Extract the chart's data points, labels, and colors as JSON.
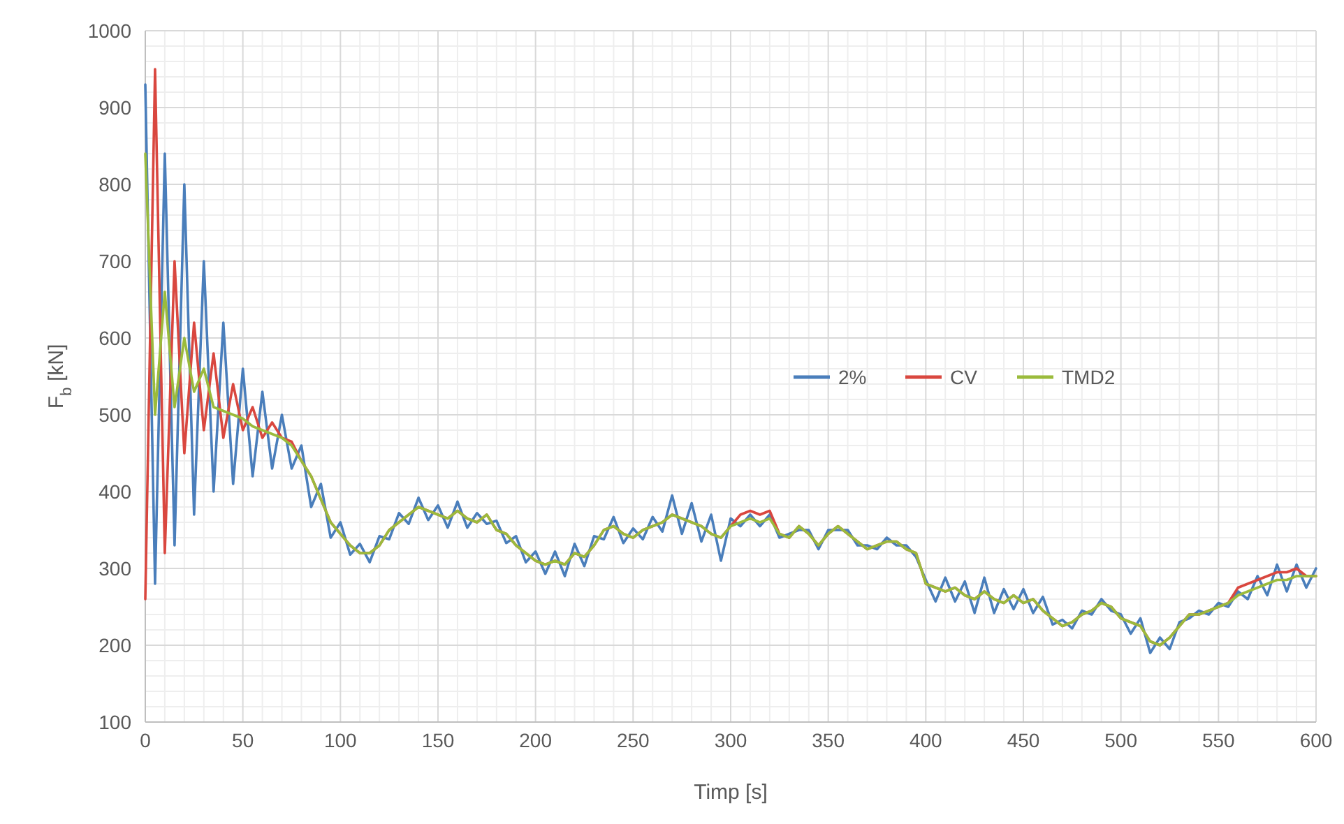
{
  "chart_data": {
    "type": "line",
    "xlabel": "Timp [s]",
    "ylabel": "F$_{b}$ [kN]",
    "x": [
      0,
      5,
      10,
      15,
      20,
      25,
      30,
      35,
      40,
      45,
      50,
      55,
      60,
      65,
      70,
      75,
      80,
      85,
      90,
      95,
      100,
      105,
      110,
      115,
      120,
      125,
      130,
      135,
      140,
      145,
      150,
      155,
      160,
      165,
      170,
      175,
      180,
      185,
      190,
      195,
      200,
      205,
      210,
      215,
      220,
      225,
      230,
      235,
      240,
      245,
      250,
      255,
      260,
      265,
      270,
      275,
      280,
      285,
      290,
      295,
      300,
      305,
      310,
      315,
      320,
      325,
      330,
      335,
      340,
      345,
      350,
      355,
      360,
      365,
      370,
      375,
      380,
      385,
      390,
      395,
      400,
      405,
      410,
      415,
      420,
      425,
      430,
      435,
      440,
      445,
      450,
      455,
      460,
      465,
      470,
      475,
      480,
      485,
      490,
      495,
      500,
      505,
      510,
      515,
      520,
      525,
      530,
      535,
      540,
      545,
      550,
      555,
      560,
      565,
      570,
      575,
      580,
      585,
      590,
      595,
      600
    ],
    "series": [
      {
        "name": "2%",
        "color": "#4a7ebb",
        "values": [
          930,
          280,
          840,
          330,
          800,
          370,
          700,
          400,
          620,
          410,
          560,
          420,
          530,
          430,
          500,
          430,
          460,
          380,
          410,
          340,
          360,
          318,
          332,
          308,
          342,
          338,
          372,
          358,
          392,
          363,
          382,
          353,
          387,
          353,
          372,
          358,
          362,
          333,
          342,
          308,
          322,
          293,
          322,
          290,
          332,
          303,
          342,
          338,
          367,
          333,
          352,
          338,
          367,
          348,
          395,
          345,
          385,
          335,
          370,
          310,
          365,
          355,
          370,
          355,
          370,
          340,
          345,
          350,
          350,
          325,
          350,
          350,
          350,
          330,
          330,
          325,
          340,
          330,
          330,
          315,
          285,
          257,
          288,
          257,
          283,
          242,
          288,
          242,
          273,
          247,
          273,
          242,
          263,
          227,
          233,
          222,
          245,
          240,
          260,
          245,
          240,
          215,
          235,
          190,
          210,
          195,
          230,
          235,
          245,
          240,
          255,
          250,
          270,
          260,
          290,
          265,
          305,
          270,
          305,
          275,
          300
        ]
      },
      {
        "name": "CV",
        "color": "#d9473f",
        "values": [
          260,
          950,
          320,
          700,
          450,
          620,
          480,
          580,
          470,
          540,
          480,
          510,
          470,
          490,
          470,
          465,
          440,
          420,
          390,
          360,
          345,
          330,
          320,
          320,
          330,
          350,
          360,
          370,
          380,
          375,
          370,
          365,
          375,
          365,
          360,
          370,
          350,
          345,
          330,
          320,
          310,
          305,
          310,
          305,
          320,
          315,
          330,
          350,
          355,
          345,
          340,
          350,
          355,
          360,
          370,
          365,
          360,
          355,
          345,
          340,
          355,
          370,
          375,
          370,
          375,
          345,
          340,
          355,
          345,
          330,
          345,
          355,
          345,
          335,
          325,
          330,
          335,
          335,
          325,
          320,
          280,
          275,
          270,
          275,
          265,
          260,
          270,
          260,
          255,
          265,
          255,
          260,
          245,
          235,
          225,
          230,
          240,
          245,
          255,
          250,
          235,
          230,
          225,
          205,
          200,
          210,
          225,
          240,
          240,
          245,
          250,
          255,
          275,
          280,
          285,
          290,
          295,
          295,
          300,
          290,
          290
        ]
      },
      {
        "name": "TMD2",
        "color": "#9bbb3c",
        "values": [
          840,
          500,
          660,
          510,
          600,
          530,
          560,
          510,
          505,
          500,
          495,
          485,
          480,
          475,
          470,
          460,
          440,
          420,
          390,
          360,
          345,
          330,
          320,
          320,
          330,
          350,
          360,
          370,
          380,
          375,
          370,
          365,
          375,
          365,
          360,
          370,
          350,
          345,
          330,
          320,
          310,
          305,
          310,
          305,
          320,
          315,
          330,
          350,
          355,
          345,
          340,
          350,
          355,
          360,
          370,
          365,
          360,
          355,
          345,
          340,
          355,
          360,
          365,
          360,
          365,
          345,
          340,
          355,
          345,
          330,
          345,
          355,
          345,
          335,
          325,
          330,
          335,
          335,
          325,
          320,
          280,
          275,
          270,
          275,
          265,
          260,
          270,
          260,
          255,
          265,
          255,
          260,
          245,
          235,
          225,
          230,
          240,
          245,
          255,
          250,
          235,
          230,
          225,
          205,
          200,
          210,
          225,
          240,
          240,
          245,
          250,
          255,
          265,
          270,
          275,
          280,
          285,
          285,
          290,
          290,
          290
        ]
      }
    ],
    "xlim": [
      0,
      600
    ],
    "xticks": [
      0,
      50,
      100,
      150,
      200,
      250,
      300,
      350,
      400,
      450,
      500,
      550,
      600
    ],
    "ylim": [
      100,
      1000
    ],
    "yticks": [
      100,
      200,
      300,
      400,
      500,
      600,
      700,
      800,
      900,
      1000
    ],
    "grid": true,
    "legend": "right",
    "marker": "none",
    "line_style": "solid"
  }
}
